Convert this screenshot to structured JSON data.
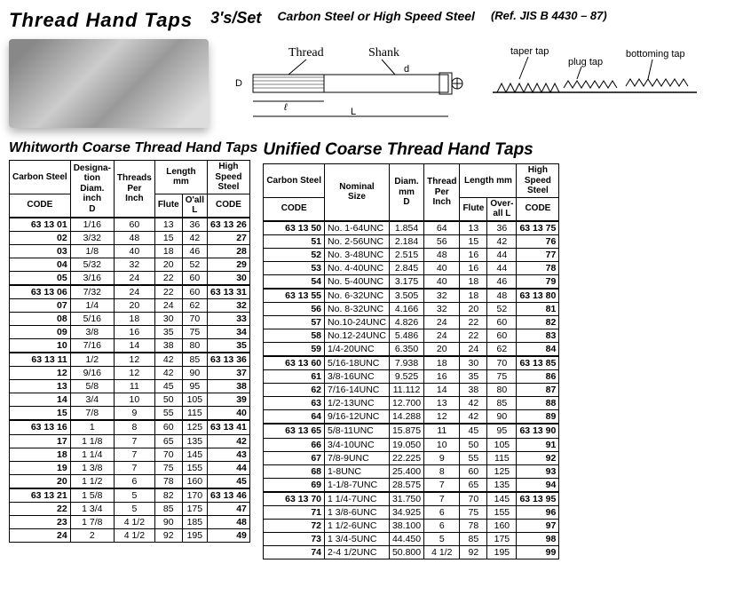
{
  "header": {
    "main": "Thread Hand Taps",
    "sub": "3's/Set",
    "desc": "Carbon Steel or  High Speed Steel",
    "ref": "(Ref. JIS B 4430 – 87)"
  },
  "diagram": {
    "thread": "Thread",
    "shank": "Shank",
    "D": "D",
    "d": "d",
    "l": "ℓ",
    "L": "L"
  },
  "tap_types": {
    "taper": "taper tap",
    "plug": "plug tap",
    "bottoming": "bottoming tap"
  },
  "whitworth": {
    "title": "Whitworth Coarse Thread Hand Taps",
    "headers": {
      "carbon": "Carbon Steel",
      "code": "CODE",
      "designation": "Designa-\ntion\nDiam.\ninch\nD",
      "tpi": "Threads\nPer\nInch",
      "length": "Length\nmm",
      "flute": "Flute",
      "oall": "O'all\nL",
      "hss": "High\nSpeed\nSteel"
    },
    "groups": [
      [
        [
          "63 13 01",
          "1/16",
          "60",
          "13",
          "36",
          "63 13 26"
        ],
        [
          "02",
          "3/32",
          "48",
          "15",
          "42",
          "27"
        ],
        [
          "03",
          "1/8",
          "40",
          "18",
          "46",
          "28"
        ],
        [
          "04",
          "5/32",
          "32",
          "20",
          "52",
          "29"
        ],
        [
          "05",
          "3/16",
          "24",
          "22",
          "60",
          "30"
        ]
      ],
      [
        [
          "63 13 06",
          "7/32",
          "24",
          "22",
          "60",
          "63 13 31"
        ],
        [
          "07",
          "1/4",
          "20",
          "24",
          "62",
          "32"
        ],
        [
          "08",
          "5/16",
          "18",
          "30",
          "70",
          "33"
        ],
        [
          "09",
          "3/8",
          "16",
          "35",
          "75",
          "34"
        ],
        [
          "10",
          "7/16",
          "14",
          "38",
          "80",
          "35"
        ]
      ],
      [
        [
          "63 13 11",
          "1/2",
          "12",
          "42",
          "85",
          "63 13 36"
        ],
        [
          "12",
          "9/16",
          "12",
          "42",
          "90",
          "37"
        ],
        [
          "13",
          "5/8",
          "11",
          "45",
          "95",
          "38"
        ],
        [
          "14",
          "3/4",
          "10",
          "50",
          "105",
          "39"
        ],
        [
          "15",
          "7/8",
          "9",
          "55",
          "115",
          "40"
        ]
      ],
      [
        [
          "63 13 16",
          "1",
          "8",
          "60",
          "125",
          "63 13 41"
        ],
        [
          "17",
          "1 1/8",
          "7",
          "65",
          "135",
          "42"
        ],
        [
          "18",
          "1 1/4",
          "7",
          "70",
          "145",
          "43"
        ],
        [
          "19",
          "1 3/8",
          "7",
          "75",
          "155",
          "44"
        ],
        [
          "20",
          "1 1/2",
          "6",
          "78",
          "160",
          "45"
        ]
      ],
      [
        [
          "63 13 21",
          "1 5/8",
          "5",
          "82",
          "170",
          "63 13 46"
        ],
        [
          "22",
          "1 3/4",
          "5",
          "85",
          "175",
          "47"
        ],
        [
          "23",
          "1 7/8",
          "4 1/2",
          "90",
          "185",
          "48"
        ],
        [
          "24",
          "2",
          "4 1/2",
          "92",
          "195",
          "49"
        ]
      ]
    ]
  },
  "unified": {
    "title": "Unified Coarse Thread Hand Taps",
    "headers": {
      "carbon": "Carbon Steel",
      "code": "CODE",
      "nominal": "Nominal\nSize",
      "diam": "Diam.\nmm\nD",
      "tpi": "Thread\nPer\nInch",
      "length": "Length mm",
      "flute": "Flute",
      "oall": "Over-\nall L",
      "hss": "High\nSpeed\nSteel"
    },
    "groups": [
      [
        [
          "63 13 50",
          "No.  1-64UNC",
          "1.854",
          "64",
          "13",
          "36",
          "63 13 75"
        ],
        [
          "51",
          "No.  2-56UNC",
          "2.184",
          "56",
          "15",
          "42",
          "76"
        ],
        [
          "52",
          "No.  3-48UNC",
          "2.515",
          "48",
          "16",
          "44",
          "77"
        ],
        [
          "53",
          "No.  4-40UNC",
          "2.845",
          "40",
          "16",
          "44",
          "78"
        ],
        [
          "54",
          "No.  5-40UNC",
          "3.175",
          "40",
          "18",
          "46",
          "79"
        ]
      ],
      [
        [
          "63 13 55",
          "No.  6-32UNC",
          "3.505",
          "32",
          "18",
          "48",
          "63 13 80"
        ],
        [
          "56",
          "No.  8-32UNC",
          "4.166",
          "32",
          "20",
          "52",
          "81"
        ],
        [
          "57",
          "No.10-24UNC",
          "4.826",
          "24",
          "22",
          "60",
          "82"
        ],
        [
          "58",
          "No.12-24UNC",
          "5.486",
          "24",
          "22",
          "60",
          "83"
        ],
        [
          "59",
          "1/4-20UNC",
          "6.350",
          "20",
          "24",
          "62",
          "84"
        ]
      ],
      [
        [
          "63 13 60",
          "5/16-18UNC",
          "7.938",
          "18",
          "30",
          "70",
          "63 13 85"
        ],
        [
          "61",
          "3/8-16UNC",
          "9.525",
          "16",
          "35",
          "75",
          "86"
        ],
        [
          "62",
          "7/16-14UNC",
          "11.112",
          "14",
          "38",
          "80",
          "87"
        ],
        [
          "63",
          "1/2-13UNC",
          "12.700",
          "13",
          "42",
          "85",
          "88"
        ],
        [
          "64",
          "9/16-12UNC",
          "14.288",
          "12",
          "42",
          "90",
          "89"
        ]
      ],
      [
        [
          "63 13 65",
          "5/8-11UNC",
          "15.875",
          "11",
          "45",
          "95",
          "63 13 90"
        ],
        [
          "66",
          "3/4-10UNC",
          "19.050",
          "10",
          "50",
          "105",
          "91"
        ],
        [
          "67",
          "7/8-9UNC",
          "22.225",
          "9",
          "55",
          "115",
          "92"
        ],
        [
          "68",
          "1-8UNC",
          "25.400",
          "8",
          "60",
          "125",
          "93"
        ],
        [
          "69",
          "1-1/8-7UNC",
          "28.575",
          "7",
          "65",
          "135",
          "94"
        ]
      ],
      [
        [
          "63 13 70",
          "1 1/4-7UNC",
          "31.750",
          "7",
          "70",
          "145",
          "63 13 95"
        ],
        [
          "71",
          "1 3/8-6UNC",
          "34.925",
          "6",
          "75",
          "155",
          "96"
        ],
        [
          "72",
          "1 1/2-6UNC",
          "38.100",
          "6",
          "78",
          "160",
          "97"
        ],
        [
          "73",
          "1 3/4-5UNC",
          "44.450",
          "5",
          "85",
          "175",
          "98"
        ],
        [
          "74",
          "2-4 1/2UNC",
          "50.800",
          "4 1/2",
          "92",
          "195",
          "99"
        ]
      ]
    ]
  }
}
